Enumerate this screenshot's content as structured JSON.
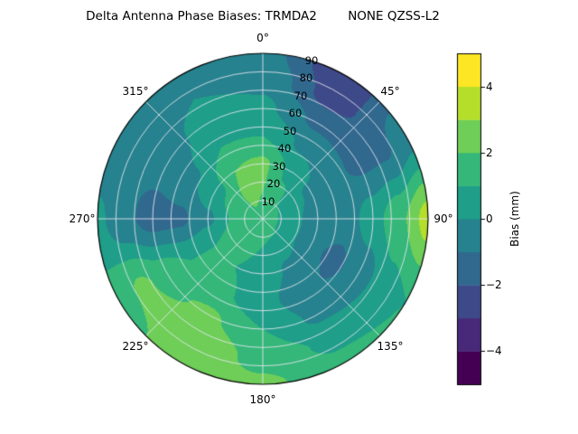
{
  "chart_data": {
    "type": "heatmap",
    "projection": "polar",
    "title": "Delta Antenna Phase Biases: TRMDA2        NONE QZSS-L2",
    "angular_tick_labels": [
      "0°",
      "45°",
      "90°",
      "135°",
      "180°",
      "225°",
      "270°",
      "315°"
    ],
    "radial_tick_labels": [
      "10",
      "20",
      "30",
      "40",
      "50",
      "60",
      "70",
      "80",
      "90"
    ],
    "radial_range": [
      0,
      90
    ],
    "grid_on": true,
    "colorbar": {
      "label": "Bias (mm)",
      "min": -5,
      "max": 5,
      "ticks": [
        -4,
        -2,
        0,
        2,
        4
      ],
      "tick_labels": [
        "−4",
        "−2",
        "0",
        "2",
        "4"
      ],
      "colors": [
        "#440154",
        "#482878",
        "#3e4989",
        "#31688e",
        "#26828e",
        "#1f9e89",
        "#35b779",
        "#6ece58",
        "#b5de2b",
        "#fde725"
      ]
    },
    "grid": {
      "azimuth_deg": [
        0,
        30,
        60,
        90,
        120,
        150,
        180,
        210,
        240,
        270,
        300,
        330
      ],
      "zenith_deg": [
        0,
        15,
        30,
        45,
        60,
        75,
        90
      ],
      "bias_mm": [
        [
          1.8,
          1.8,
          1.8,
          1.8,
          1.8,
          1.8,
          1.8,
          1.8,
          1.8,
          1.8,
          1.8,
          1.8
        ],
        [
          2.0,
          1.2,
          0.6,
          0.4,
          0.4,
          0.8,
          1.0,
          1.2,
          1.4,
          1.2,
          1.6,
          2.2
        ],
        [
          2.2,
          0.8,
          -0.2,
          -0.6,
          -0.8,
          -0.2,
          0.6,
          1.0,
          1.0,
          -0.2,
          0.6,
          2.0
        ],
        [
          1.0,
          -0.2,
          -0.8,
          -0.6,
          -1.2,
          -0.8,
          0.4,
          1.2,
          1.0,
          -1.2,
          -0.2,
          1.0
        ],
        [
          0.2,
          -1.2,
          -1.2,
          0.6,
          -0.6,
          -0.2,
          1.0,
          2.2,
          1.6,
          -1.4,
          -0.6,
          0.4
        ],
        [
          -0.2,
          -2.4,
          -1.2,
          1.8,
          0.6,
          0.8,
          1.6,
          3.0,
          2.2,
          -0.8,
          -0.8,
          0.0
        ],
        [
          -0.6,
          -2.8,
          -0.4,
          3.4,
          1.0,
          1.2,
          2.2,
          2.6,
          1.4,
          0.2,
          -1.0,
          -0.6
        ]
      ]
    }
  }
}
